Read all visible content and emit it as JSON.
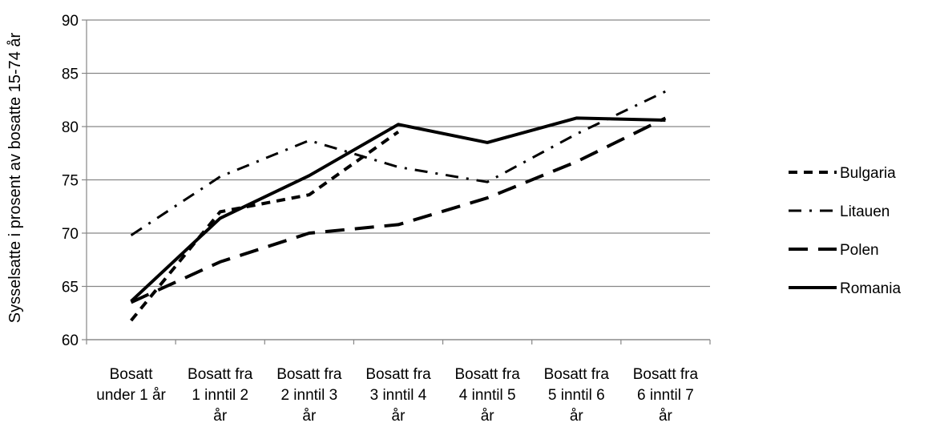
{
  "chart_data": {
    "type": "line",
    "title": "",
    "xlabel": "",
    "ylabel": "Sysselsatte i prosent av bosatte 15-74 år",
    "ylim": [
      60,
      90
    ],
    "yticks": [
      60,
      65,
      70,
      75,
      80,
      85,
      90
    ],
    "grid": true,
    "legend_position": "right",
    "categories": [
      [
        "Bosatt",
        "under 1 år"
      ],
      [
        "Bosatt fra",
        "1 inntil 2",
        "år"
      ],
      [
        "Bosatt fra",
        "2 inntil 3",
        "år"
      ],
      [
        "Bosatt fra",
        "3 inntil 4",
        "år"
      ],
      [
        "Bosatt fra",
        "4 inntil 5",
        "år"
      ],
      [
        "Bosatt fra",
        "5 inntil 6",
        "år"
      ],
      [
        "Bosatt fra",
        "6 inntil 7",
        "år"
      ]
    ],
    "series": [
      {
        "name": "Bulgaria",
        "style": "short-dash",
        "values": [
          61.8,
          72.0,
          73.6,
          79.5,
          null,
          null,
          null
        ]
      },
      {
        "name": "Litauen",
        "style": "dash-dot",
        "values": [
          69.8,
          75.3,
          78.7,
          76.2,
          74.8,
          79.3,
          83.3
        ]
      },
      {
        "name": "Polen",
        "style": "long-dash",
        "values": [
          63.5,
          67.3,
          70.0,
          70.8,
          73.3,
          76.7,
          80.8
        ]
      },
      {
        "name": "Romania",
        "style": "solid",
        "values": [
          63.6,
          71.4,
          75.4,
          80.2,
          78.5,
          80.8,
          80.6
        ]
      }
    ]
  }
}
